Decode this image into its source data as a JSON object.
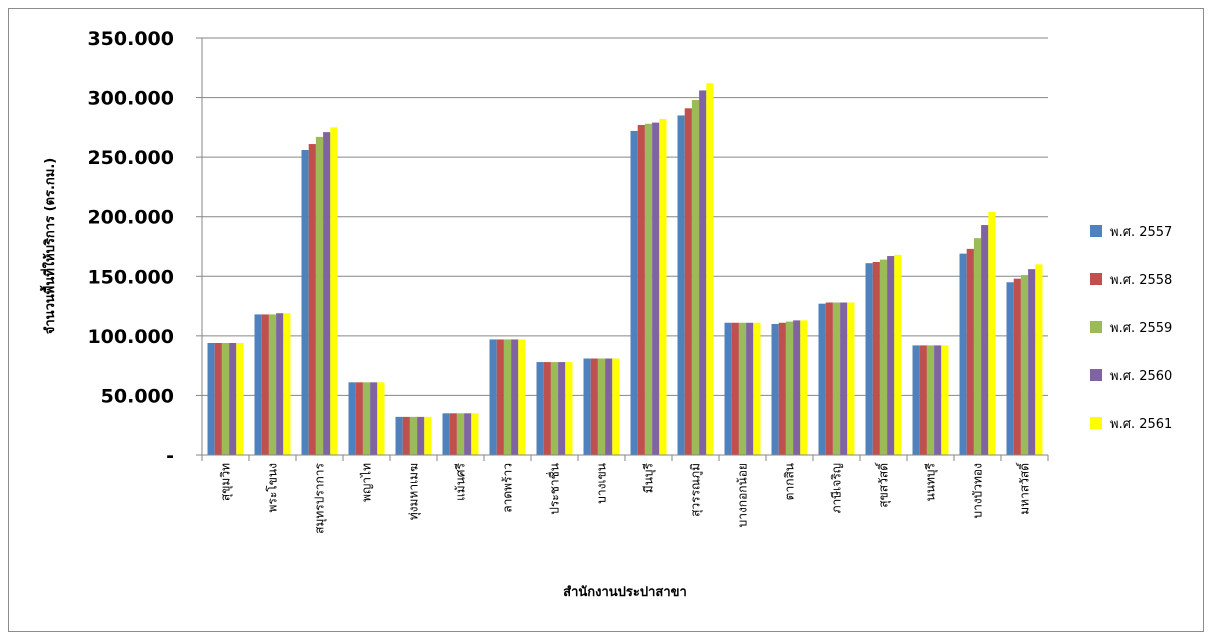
{
  "chart_data": {
    "type": "bar",
    "ylabel": "จำนวนพื้นที่ให้บริการ (ตร.กม.)",
    "xlabel": "สำนักงานประปาสาขา",
    "ylim": [
      0,
      350
    ],
    "yticks": [
      0,
      50,
      100,
      150,
      200,
      250,
      300,
      350
    ],
    "ytick_labels": [
      "-",
      "50.000",
      "100.000",
      "150.000",
      "200.000",
      "250.000",
      "300.000",
      "350.000"
    ],
    "grid": true,
    "legend_position": "right",
    "categories": [
      "สุขุมวิท",
      "พระโขนง",
      "สมุทรปราการ",
      "พญาไท",
      "ทุ่งมหาเมฆ",
      "แม้นศรี",
      "ลาดพร้าว",
      "ประชาชื่น",
      "บางเขน",
      "มีนบุรี",
      "สุวรรณภูมิ",
      "บางกอกน้อย",
      "ตากสิน",
      "ภาษีเจริญ",
      "สุขสวัสดิ์",
      "นนทบุรี",
      "บางบัวทอง",
      "มหาสวัสดิ์"
    ],
    "series": [
      {
        "name": "พ.ศ. 2557",
        "color": "#4f81bd",
        "values": [
          94,
          118,
          256,
          61,
          32,
          35,
          97,
          78,
          81,
          272,
          285,
          111,
          110,
          127,
          161,
          92,
          169,
          145
        ]
      },
      {
        "name": "พ.ศ. 2558",
        "color": "#c0504d",
        "values": [
          94,
          118,
          261,
          61,
          32,
          35,
          97,
          78,
          81,
          277,
          291,
          111,
          111,
          128,
          162,
          92,
          173,
          148
        ]
      },
      {
        "name": "พ.ศ. 2559",
        "color": "#9bbb59",
        "values": [
          94,
          118,
          267,
          61,
          32,
          35,
          97,
          78,
          81,
          278,
          298,
          111,
          112,
          128,
          164,
          92,
          182,
          151
        ]
      },
      {
        "name": "พ.ศ. 2560",
        "color": "#8064a2",
        "values": [
          94,
          119,
          271,
          61,
          32,
          35,
          97,
          78,
          81,
          279,
          306,
          111,
          113,
          128,
          167,
          92,
          193,
          156
        ]
      },
      {
        "name": "พ.ศ. 2561",
        "color": "#ffff00",
        "values": [
          94,
          119,
          275,
          61,
          32,
          35,
          97,
          78,
          81,
          282,
          312,
          111,
          113,
          128,
          168,
          92,
          204,
          160
        ]
      }
    ]
  }
}
